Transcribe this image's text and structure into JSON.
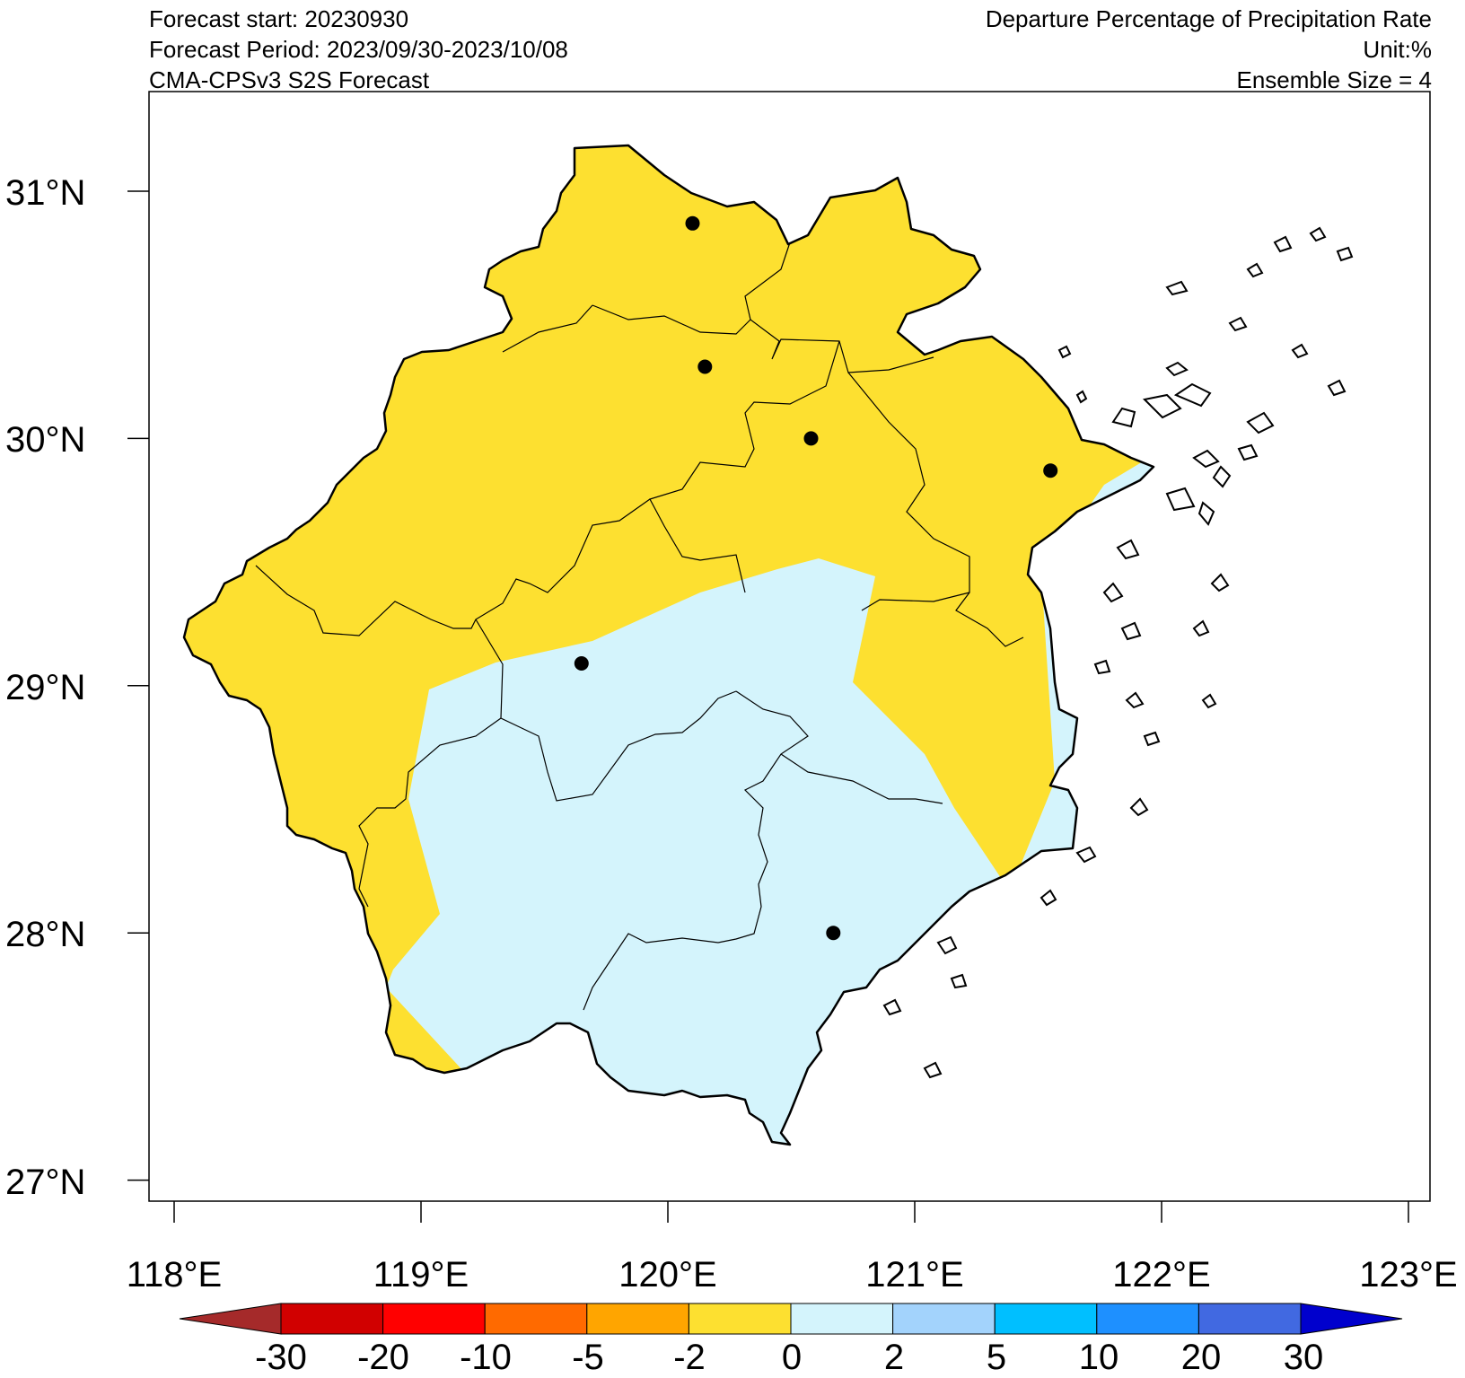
{
  "header_left": {
    "line1": "Forecast start: 20230930",
    "line2": "Forecast Period: 2023/09/30-2023/10/08",
    "line3": "CMA-CPSv3 S2S Forecast"
  },
  "header_right": {
    "line1": "Departure Percentage of Precipitation Rate",
    "line2": "Unit:%",
    "line3": "Ensemble Size = 4"
  },
  "axes": {
    "lat_ticks": [
      "31°N",
      "30°N",
      "29°N",
      "28°N",
      "27°N"
    ],
    "lon_ticks": [
      "118°E",
      "119°E",
      "120°E",
      "121°E",
      "122°E",
      "123°E"
    ],
    "lon_range": [
      117.9,
      123.1
    ],
    "lat_range": [
      26.9,
      31.4
    ]
  },
  "colorbar": {
    "labels": [
      "-30",
      "-20",
      "-10",
      "-5",
      "-2",
      "0",
      "2",
      "5",
      "10",
      "20",
      "30"
    ],
    "colors": [
      "#a52a2a",
      "#d10000",
      "#ff0000",
      "#ff6a00",
      "#ffa500",
      "#fde030",
      "#d4f4fc",
      "#a3d3fc",
      "#00bfff",
      "#1e90ff",
      "#4169e1",
      "#0000cd"
    ]
  },
  "map_colors": {
    "dry": "#fde030",
    "wet": "#d4f4fc",
    "border": "#000000"
  },
  "stations_lonlat": [
    [
      120.1,
      30.87
    ],
    [
      120.15,
      30.29
    ],
    [
      120.58,
      30.0
    ],
    [
      121.55,
      29.87
    ],
    [
      119.65,
      29.09
    ],
    [
      120.67,
      28.0
    ]
  ]
}
